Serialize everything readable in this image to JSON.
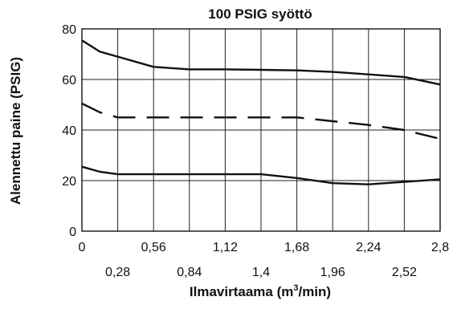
{
  "chart_data": {
    "type": "line",
    "title": "100 PSIG syöttö",
    "xlabel": "Ilmavirtaama (m³/min)",
    "xlabel_parts": {
      "pre": "Ilmavirtaama (m",
      "sup": "3",
      "post": "/min)"
    },
    "ylabel": "Alennettu paine (PSIG)",
    "xlim": [
      0,
      2.8
    ],
    "ylim": [
      0,
      80
    ],
    "grid": true,
    "x_ticks_upper": [
      {
        "value": 0,
        "label": "0"
      },
      {
        "value": 0.56,
        "label": "0,56"
      },
      {
        "value": 1.12,
        "label": "1,12"
      },
      {
        "value": 1.68,
        "label": "1,68"
      },
      {
        "value": 2.24,
        "label": "2,24"
      },
      {
        "value": 2.8,
        "label": "2,8"
      }
    ],
    "x_ticks_lower": [
      {
        "value": 0.28,
        "label": "0,28"
      },
      {
        "value": 0.84,
        "label": "0,84"
      },
      {
        "value": 1.4,
        "label": "1,4"
      },
      {
        "value": 1.96,
        "label": "1,96"
      },
      {
        "value": 2.52,
        "label": "2,52"
      }
    ],
    "y_ticks": [
      {
        "value": 0,
        "label": "0"
      },
      {
        "value": 20,
        "label": "20"
      },
      {
        "value": 40,
        "label": "40"
      },
      {
        "value": 60,
        "label": "60"
      },
      {
        "value": 80,
        "label": "80"
      }
    ],
    "series": [
      {
        "style": "solid",
        "points": [
          [
            0,
            75.5
          ],
          [
            0.14,
            71
          ],
          [
            0.28,
            69
          ],
          [
            0.56,
            65
          ],
          [
            0.84,
            64
          ],
          [
            1.12,
            64
          ],
          [
            1.4,
            63.8
          ],
          [
            1.68,
            63.6
          ],
          [
            1.96,
            63
          ],
          [
            2.24,
            62
          ],
          [
            2.52,
            61
          ],
          [
            2.8,
            58
          ]
        ]
      },
      {
        "style": "dashed",
        "points": [
          [
            0,
            50.5
          ],
          [
            0.14,
            47
          ],
          [
            0.28,
            45
          ],
          [
            0.56,
            45
          ],
          [
            0.84,
            45
          ],
          [
            1.12,
            45
          ],
          [
            1.4,
            45
          ],
          [
            1.68,
            45
          ],
          [
            1.96,
            43.5
          ],
          [
            2.24,
            42
          ],
          [
            2.52,
            40
          ],
          [
            2.8,
            36.5
          ]
        ]
      },
      {
        "style": "solid",
        "points": [
          [
            0,
            25.5
          ],
          [
            0.14,
            23.5
          ],
          [
            0.28,
            22.5
          ],
          [
            0.56,
            22.5
          ],
          [
            0.84,
            22.5
          ],
          [
            1.12,
            22.5
          ],
          [
            1.4,
            22.5
          ],
          [
            1.68,
            21
          ],
          [
            1.96,
            19
          ],
          [
            2.24,
            18.5
          ],
          [
            2.52,
            19.5
          ],
          [
            2.8,
            20.5
          ]
        ]
      }
    ]
  }
}
